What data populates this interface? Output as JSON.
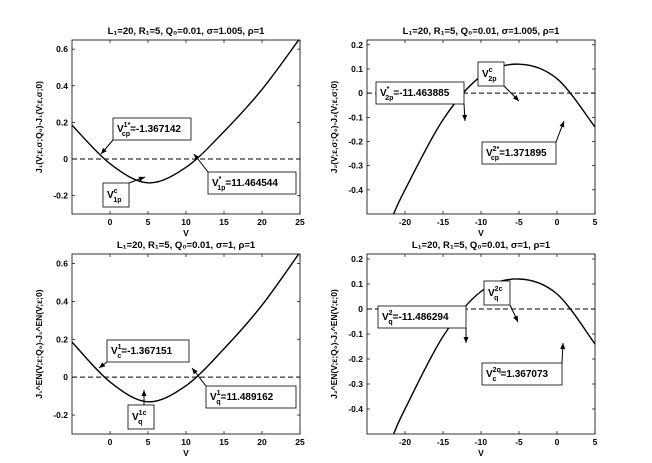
{
  "chart_data": [
    {
      "type": "line",
      "title": "L₁=20, R₁=5, Q₀=0.01, σ=1.005, ρ=1",
      "xlabel": "V",
      "ylabel": "J₁(V;ε,σ;Q₀)-J₁(V;ε,σ;0)",
      "xlim": [
        -5,
        25
      ],
      "ylim": [
        -0.3,
        0.65
      ],
      "xticks": [
        0,
        5,
        10,
        15,
        20,
        25
      ],
      "yticks": [
        -0.2,
        0,
        0.2,
        0.4,
        0.6
      ],
      "grid": false,
      "series": [
        {
          "style": "solid",
          "x": [
            -5,
            0,
            5,
            10,
            15,
            20,
            25
          ],
          "y": [
            0.185,
            -0.025,
            -0.13,
            -0.045,
            0.15,
            0.38,
            0.66
          ]
        },
        {
          "style": "dashed",
          "x": [
            -5,
            25
          ],
          "y": [
            0,
            0
          ]
        }
      ],
      "annotations": [
        {
          "text": "V_cp^{1*}=-1.367142",
          "x": -1.367142,
          "y": 0
        },
        {
          "text": "V_1p^c",
          "x": 5,
          "y": -0.13
        },
        {
          "text": "V_1p^*=11.464544",
          "x": 11.464544,
          "y": 0
        }
      ]
    },
    {
      "type": "line",
      "title": "L₁=20, R₁=5, Q₀=0.01, σ=1.005, ρ=1",
      "xlabel": "V",
      "ylabel": "J₂(V;ε,σ;Q₀)-J₂(V;ε,σ;0)",
      "xlim": [
        -25,
        5
      ],
      "ylim": [
        -0.5,
        0.22
      ],
      "xticks": [
        -20,
        -15,
        -10,
        -5,
        0,
        5
      ],
      "yticks": [
        -0.4,
        -0.3,
        -0.2,
        -0.1,
        0,
        0.1,
        0.2
      ],
      "grid": false,
      "series": [
        {
          "style": "solid",
          "x": [
            -21.5,
            -20,
            -15,
            -10,
            -5,
            0,
            5
          ],
          "y": [
            -0.5,
            -0.4,
            -0.11,
            0.07,
            0.12,
            0.06,
            -0.14
          ]
        },
        {
          "style": "dashed",
          "x": [
            -25,
            5
          ],
          "y": [
            0,
            0
          ]
        }
      ],
      "annotations": [
        {
          "text": "V_2p^*=-11.463885",
          "x": -11.463885,
          "y": 0
        },
        {
          "text": "V_2p^c",
          "x": -5,
          "y": 0.12
        },
        {
          "text": "V_cp^{2*}=1.371895",
          "x": 1.371895,
          "y": 0
        }
      ]
    },
    {
      "type": "line",
      "title": "L₁=20, R₁=5, Q₀=0.01, σ=1, ρ=1",
      "xlabel": "V",
      "ylabel": "J₁^EN(V;ε;Q₀)-J₁^EN(V;ε;0)",
      "xlim": [
        -5,
        25
      ],
      "ylim": [
        -0.3,
        0.65
      ],
      "xticks": [
        0,
        5,
        10,
        15,
        20,
        25
      ],
      "yticks": [
        -0.2,
        0,
        0.2,
        0.4,
        0.6
      ],
      "grid": false,
      "series": [
        {
          "style": "solid",
          "x": [
            -5,
            0,
            5,
            10,
            15,
            20,
            25
          ],
          "y": [
            0.185,
            -0.025,
            -0.13,
            -0.045,
            0.15,
            0.38,
            0.66
          ]
        },
        {
          "style": "dashed",
          "x": [
            -5,
            25
          ],
          "y": [
            0,
            0
          ]
        }
      ],
      "annotations": [
        {
          "text": "V_c^{1}=-1.367151",
          "x": -1.367151,
          "y": 0
        },
        {
          "text": "V_q^{1c}",
          "x": 5,
          "y": -0.13
        },
        {
          "text": "V_q^1=11.489162",
          "x": 11.489162,
          "y": 0
        }
      ]
    },
    {
      "type": "line",
      "title": "L₁=20, R₁=5, Q₀=0.01, σ=1, ρ=1",
      "xlabel": "V",
      "ylabel": "J₂^EN(V;ε;Q₀)-J₂^EN(V;ε;0)",
      "xlim": [
        -25,
        5
      ],
      "ylim": [
        -0.5,
        0.22
      ],
      "xticks": [
        -20,
        -15,
        -10,
        -5,
        0,
        5
      ],
      "yticks": [
        -0.4,
        -0.3,
        -0.2,
        -0.1,
        0,
        0.1,
        0.2
      ],
      "grid": false,
      "series": [
        {
          "style": "solid",
          "x": [
            -21.5,
            -20,
            -15,
            -10,
            -5,
            0,
            5
          ],
          "y": [
            -0.5,
            -0.4,
            -0.11,
            0.07,
            0.12,
            0.06,
            -0.14
          ]
        },
        {
          "style": "dashed",
          "x": [
            -25,
            5
          ],
          "y": [
            0,
            0
          ]
        }
      ],
      "annotations": [
        {
          "text": "V_q^2=-11.486294",
          "x": -11.486294,
          "y": 0
        },
        {
          "text": "V_q^{2c}",
          "x": -5,
          "y": 0.12
        },
        {
          "text": "V_c^{2q}=1.367073",
          "x": 1.367073,
          "y": 0
        }
      ]
    }
  ]
}
